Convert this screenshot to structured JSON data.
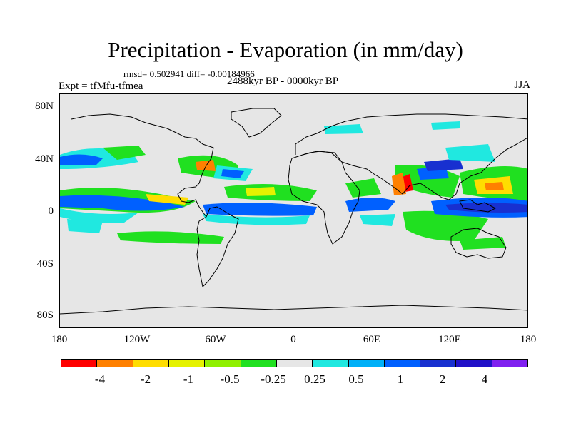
{
  "title": "Precipitation - Evaporation (in mm/day)",
  "stats": "rmsd= 0.502941 diff= -0.00184966",
  "experiment": "Expt = tfMfu-tfmea",
  "period": "2488kyr BP - 0000kyr BP",
  "season": "JJA",
  "y_ticks": [
    "80N",
    "40N",
    "0",
    "40S",
    "80S"
  ],
  "x_ticks": [
    "180",
    "120W",
    "60W",
    "0",
    "60E",
    "120E",
    "180"
  ],
  "colorbar": {
    "colors": [
      "#ff0000",
      "#ff8000",
      "#ffdd00",
      "#e5f200",
      "#90f000",
      "#20e020",
      "#e6e6e6",
      "#20e8e0",
      "#00b0f8",
      "#0060ff",
      "#1830d0",
      "#2010c8",
      "#8020f0"
    ],
    "labels": [
      "-4",
      "-2",
      "-1",
      "-0.5",
      "-0.25",
      "0.25",
      "0.5",
      "1",
      "2",
      "4"
    ]
  }
}
